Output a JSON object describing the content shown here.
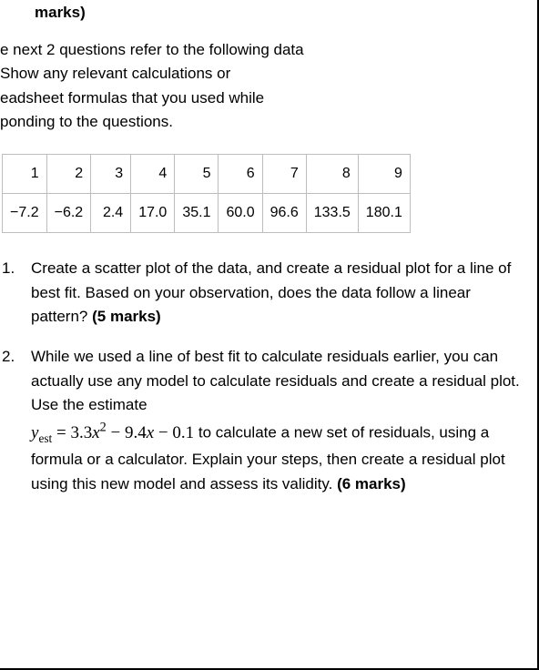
{
  "header_fragment": "marks)",
  "intro_lines": [
    "e next 2 questions refer to the following data",
    "Show any relevant calculations or",
    "eadsheet formulas that you used while",
    "ponding to the questions."
  ],
  "table": {
    "row1": [
      "1",
      "2",
      "3",
      "4",
      "5",
      "6",
      "7",
      "8",
      "9"
    ],
    "row2": [
      "−7.2",
      "−6.2",
      "2.4",
      "17.0",
      "35.1",
      "60.0",
      "96.6",
      "133.5",
      "180.1"
    ],
    "border_color": "#bdbdbd",
    "text_color": "#000000"
  },
  "questions": {
    "q1": {
      "text": "Create a scatter plot of the data, and create a residual plot for a line of best fit. Based on your observation, does the data follow a linear pattern? ",
      "marks": "(5 marks)"
    },
    "q2": {
      "pre_formula": "While we used a line of best fit to calculate residuals earlier, you can actually use any model to calculate residuals and create a residual plot. Use the estimate ",
      "formula": {
        "y_label": "y",
        "y_sub": "est",
        "eq": " = ",
        "a": "3.3",
        "x1": "x",
        "pow": "2",
        "minus1": " − ",
        "b": "9.4",
        "x2": "x",
        "minus2": " − ",
        "c": "0.1"
      },
      "post_formula": " to calculate a new set of residuals, using a formula or a calculator. Explain your steps, then create a residual plot using this new model and assess its validity. ",
      "marks": "(6 marks)"
    }
  },
  "styles": {
    "body_font": "Arial",
    "formula_font": "Times New Roman",
    "text_fontsize": 17,
    "formula_fontsize": 19,
    "background_color": "#ffffff",
    "text_color": "#000000",
    "border_color": "#000000"
  }
}
